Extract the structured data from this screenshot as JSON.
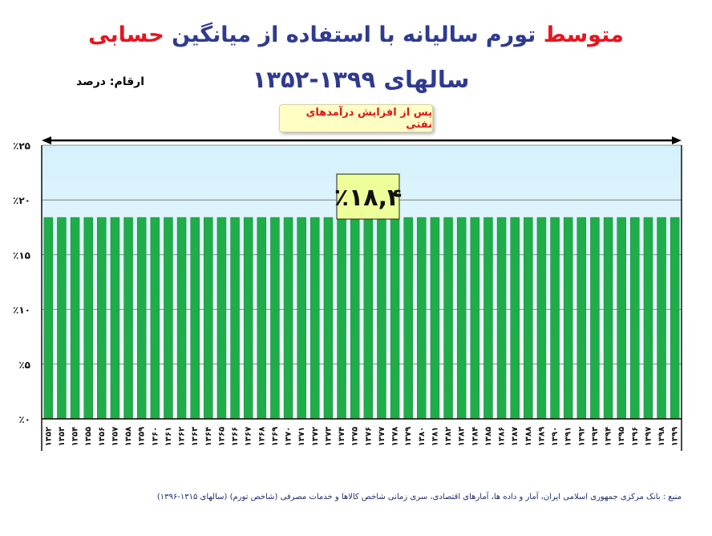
{
  "title": {
    "part_red": "متوسط",
    "part_main": "تورم سالیانه با استفاده از میانگین",
    "part_red2": "حسابی",
    "subtitle": "سالهای ۱۳۹۹-۱۳۵۲"
  },
  "units_label": "ارقام: درصد",
  "badge_label": "پس از افزایش درآمدهای نفتی",
  "source_text": "منبع : بانک مرکزی جمهوری اسلامی ایران، آمار و داده ها، آمارهای اقتصادی، سری زمانی شاخص کالاها و خدمات مصرفی (شاخص تورم) (سالهای ۱۳۱۵-۱۳۹۶)",
  "colors": {
    "bar": "#1fad4a",
    "bar_edge": "#12863a",
    "plot_top": "#d4f1fb",
    "plot_bottom": "#fbfeff",
    "title_blue": "#2f3a8f",
    "title_red": "#e8141f",
    "value_box": "#eeff9a"
  },
  "chart_data": {
    "type": "bar",
    "title": "متوسط تورم سالیانه با استفاده از میانگین حسابی",
    "subtitle": "سالهای ۱۳۹۹-۱۳۵۲",
    "categories": [
      "۱۳۵۲",
      "۱۳۵۳",
      "۱۳۵۴",
      "۱۳۵۵",
      "۱۳۵۶",
      "۱۳۵۷",
      "۱۳۵۸",
      "۱۳۵۹",
      "۱۳۶۰",
      "۱۳۶۱",
      "۱۳۶۲",
      "۱۳۶۳",
      "۱۳۶۴",
      "۱۳۶۵",
      "۱۳۶۶",
      "۱۳۶۷",
      "۱۳۶۸",
      "۱۳۶۹",
      "۱۳۷۰",
      "۱۳۷۱",
      "۱۳۷۲",
      "۱۳۷۳",
      "۱۳۷۴",
      "۱۳۷۵",
      "۱۳۷۶",
      "۱۳۷۷",
      "۱۳۷۸",
      "۱۳۷۹",
      "۱۳۸۰",
      "۱۳۸۱",
      "۱۳۸۲",
      "۱۳۸۳",
      "۱۳۸۴",
      "۱۳۸۵",
      "۱۳۸۶",
      "۱۳۸۷",
      "۱۳۸۸",
      "۱۳۸۹",
      "۱۳۹۰",
      "۱۳۹۱",
      "۱۳۹۲",
      "۱۳۹۳",
      "۱۳۹۴",
      "۱۳۹۵",
      "۱۳۹۶",
      "۱۳۹۷",
      "۱۳۹۸",
      "۱۳۹۹"
    ],
    "values": [
      18.4,
      18.4,
      18.4,
      18.4,
      18.4,
      18.4,
      18.4,
      18.4,
      18.4,
      18.4,
      18.4,
      18.4,
      18.4,
      18.4,
      18.4,
      18.4,
      18.4,
      18.4,
      18.4,
      18.4,
      18.4,
      18.4,
      18.4,
      18.4,
      18.4,
      18.4,
      18.4,
      18.4,
      18.4,
      18.4,
      18.4,
      18.4,
      18.4,
      18.4,
      18.4,
      18.4,
      18.4,
      18.4,
      18.4,
      18.4,
      18.4,
      18.4,
      18.4,
      18.4,
      18.4,
      18.4,
      18.4,
      18.4
    ],
    "ylim": [
      0,
      25
    ],
    "yticks": [
      0,
      5,
      10,
      15,
      20,
      25
    ],
    "ytick_labels": [
      "٪۰",
      "٪۵",
      "٪۱۰",
      "٪۱۵",
      "٪۲۰",
      "٪۲۵"
    ],
    "value_label": "٪۱۸,۴",
    "grid": true,
    "legend": "none"
  }
}
